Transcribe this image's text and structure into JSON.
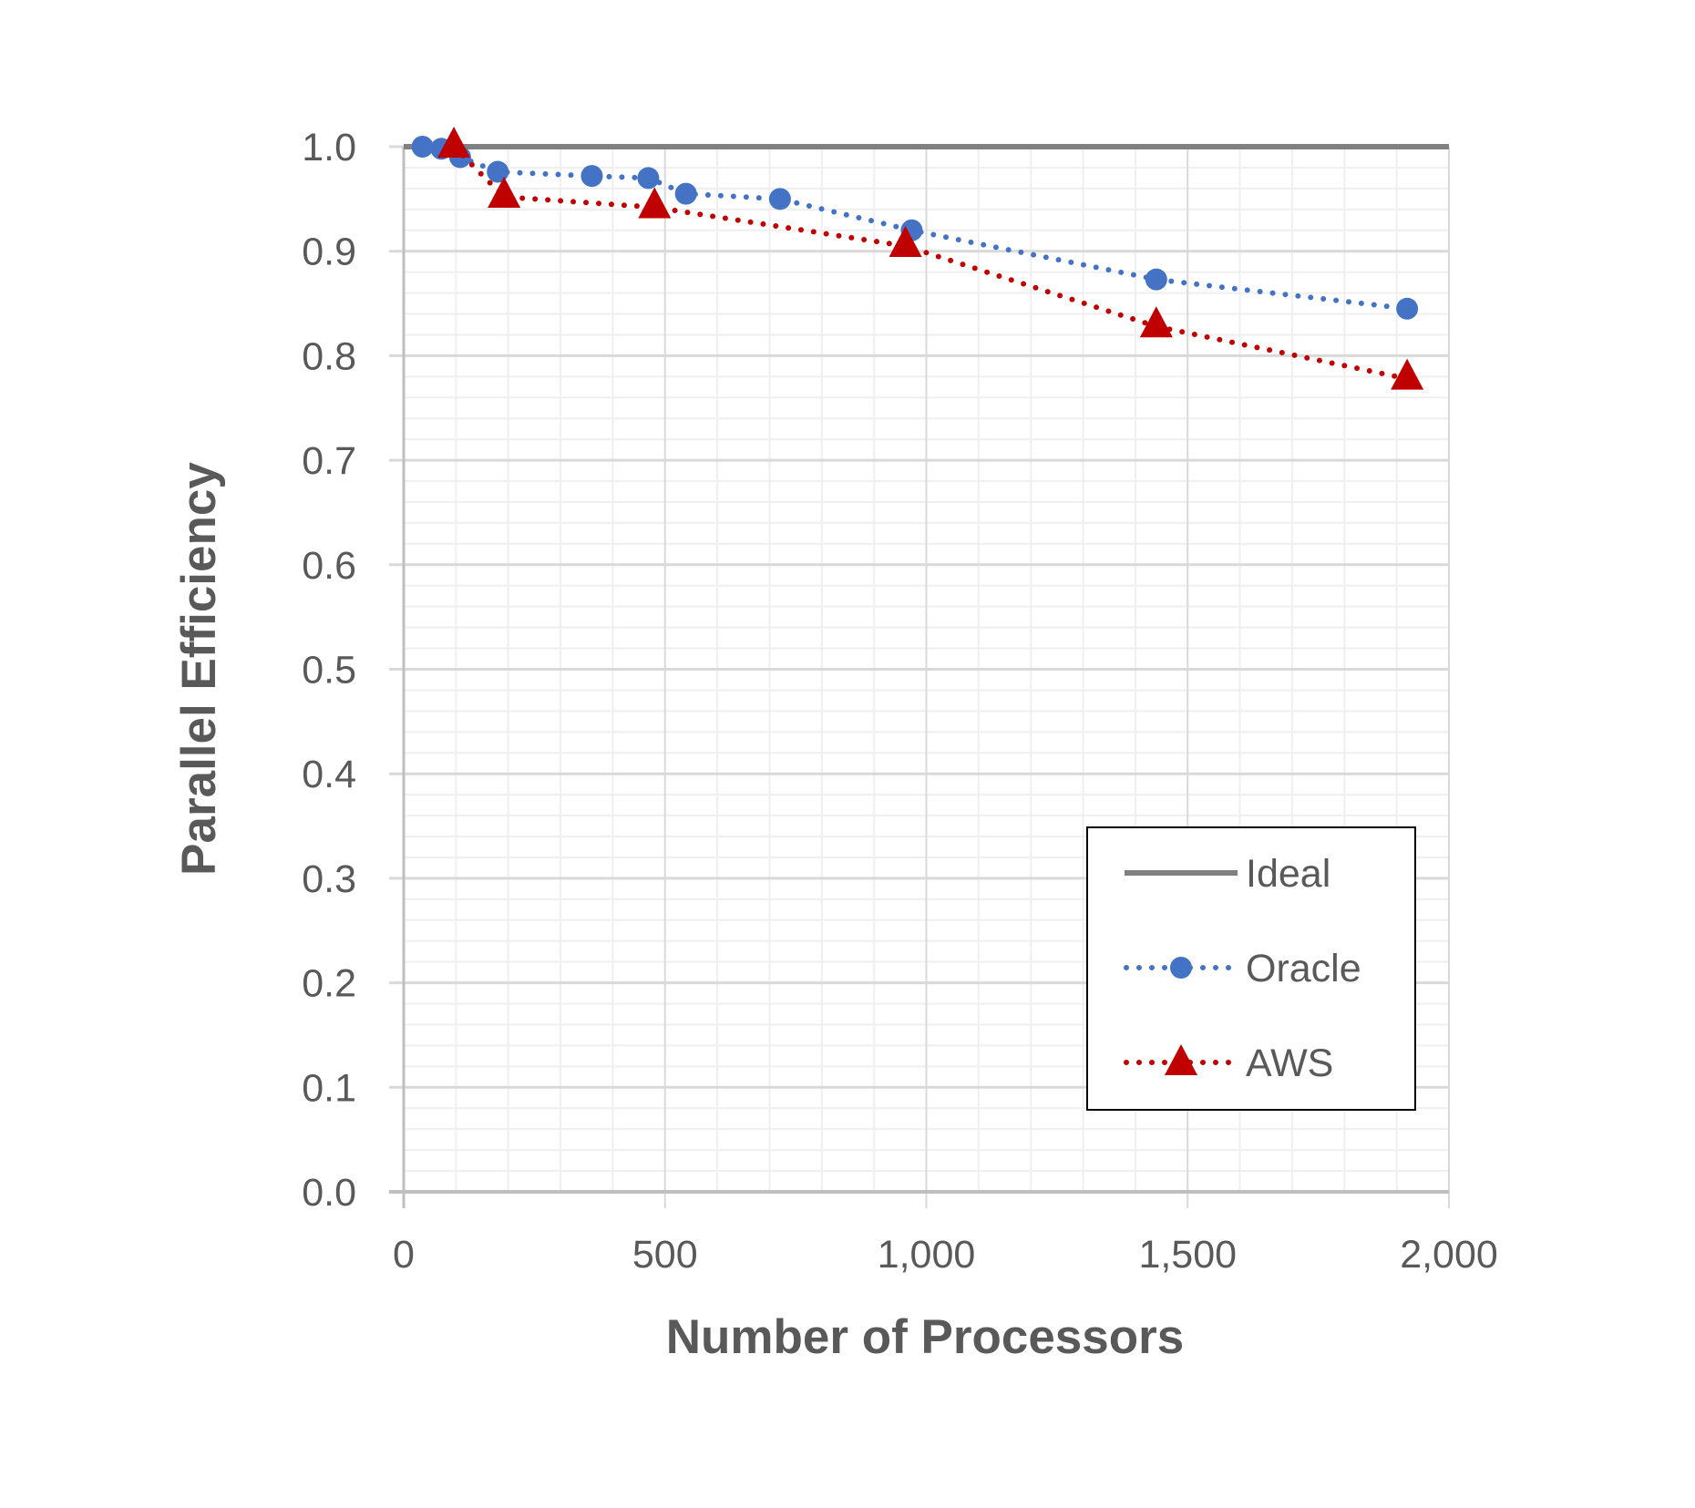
{
  "chart_data": {
    "type": "line",
    "title": "",
    "xlabel": "Number of Processors",
    "ylabel": "Parallel Efficiency",
    "xlim": [
      0,
      2000
    ],
    "ylim": [
      0.0,
      1.0
    ],
    "x_ticks": [
      "0",
      "500",
      "1,000",
      "1,500",
      "2,000"
    ],
    "y_ticks": [
      "0.0",
      "0.1",
      "0.2",
      "0.3",
      "0.4",
      "0.5",
      "0.6",
      "0.7",
      "0.8",
      "0.9",
      "1.0"
    ],
    "grid": true,
    "legend_position": "bottom-right",
    "series": [
      {
        "name": "Ideal",
        "color": "#808080",
        "style": "solid",
        "marker": "none",
        "x": [
          0,
          2000
        ],
        "y": [
          1.0,
          1.0
        ]
      },
      {
        "name": "Oracle",
        "color": "#4472C4",
        "style": "dotted",
        "marker": "circle",
        "x": [
          36,
          72,
          108,
          180,
          360,
          468,
          540,
          720,
          972,
          1440,
          1920
        ],
        "y": [
          1.0,
          0.998,
          0.99,
          0.976,
          0.972,
          0.97,
          0.955,
          0.95,
          0.92,
          0.873,
          0.845
        ]
      },
      {
        "name": "AWS",
        "color": "#C00000",
        "style": "dotted",
        "marker": "triangle",
        "x": [
          96,
          192,
          480,
          960,
          1440,
          1920
        ],
        "y": [
          1.0,
          0.952,
          0.942,
          0.905,
          0.828,
          0.778
        ]
      }
    ]
  }
}
